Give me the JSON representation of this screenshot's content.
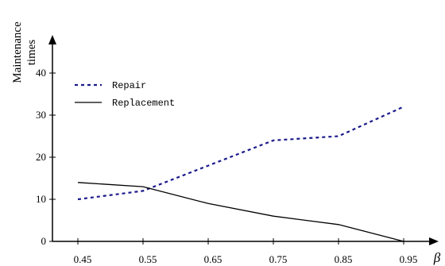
{
  "chart_data": {
    "type": "line",
    "title": "",
    "xlabel": "β",
    "ylabel_lines": [
      "Maintenance",
      "times"
    ],
    "categories": [
      "0.45",
      "0.55",
      "0.65",
      "0.75",
      "0.85",
      "0.95"
    ],
    "x": [
      0.45,
      0.55,
      0.65,
      0.75,
      0.85,
      0.95
    ],
    "xlim": [
      0.4,
      1.0
    ],
    "ylim": [
      0,
      45
    ],
    "yticks": [
      0,
      10,
      20,
      30,
      40
    ],
    "ytick_labels": [
      "0",
      "10",
      "20",
      "30",
      "40"
    ],
    "grid": false,
    "legend_position": "top-left",
    "series": [
      {
        "name": "Repair",
        "values": [
          10,
          12,
          18,
          24,
          25,
          32
        ],
        "color": "#1a1a8c",
        "style": "dotted"
      },
      {
        "name": "Replacement",
        "values": [
          14,
          13,
          9,
          6,
          4,
          0
        ],
        "color": "#000000",
        "style": "solid"
      }
    ]
  }
}
